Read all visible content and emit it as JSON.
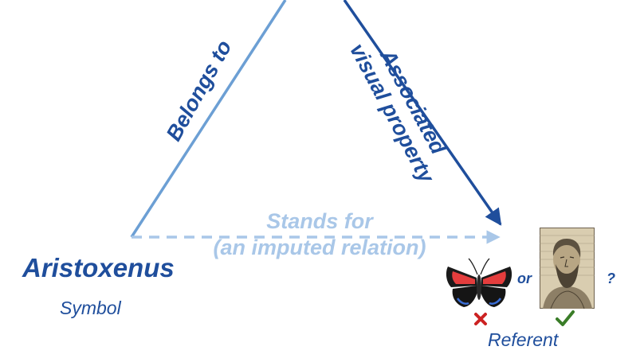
{
  "colors": {
    "light_blue": "#6c9fd4",
    "pale_blue": "#a9c7e8",
    "dark_blue": "#1f4e9c",
    "cross_red": "#cc2222",
    "check_green": "#3a7d28"
  },
  "edges": {
    "left": "Belongs to",
    "right_line1": "Associated",
    "right_line2": "visual property",
    "bottom_line1": "Stands for",
    "bottom_line2": "(an imputed relation)"
  },
  "symbol": {
    "name": "Aristoxenus",
    "caption": "Symbol"
  },
  "referent": {
    "or_text": "or",
    "question": "?",
    "caption": "Referent",
    "options": [
      {
        "icon": "butterfly-image",
        "mark": "cross-icon"
      },
      {
        "icon": "portrait-image",
        "mark": "check-icon"
      }
    ]
  }
}
